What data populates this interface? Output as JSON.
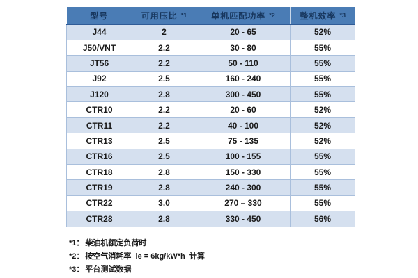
{
  "table": {
    "headers": [
      {
        "label": "型号",
        "note": ""
      },
      {
        "label": "可用压比",
        "note": "*1"
      },
      {
        "label": "单机匹配功率",
        "note": "*2"
      },
      {
        "label": "整机效率",
        "note": "*3"
      }
    ],
    "rows": [
      {
        "model": "J44",
        "pressure_ratio": "2",
        "power_range": "20 - 65",
        "efficiency": "52%"
      },
      {
        "model": "J50/VNT",
        "pressure_ratio": "2.2",
        "power_range": "30 - 80",
        "efficiency": "55%"
      },
      {
        "model": "JT56",
        "pressure_ratio": "2.2",
        "power_range": "50 - 110",
        "efficiency": "55%"
      },
      {
        "model": "J92",
        "pressure_ratio": "2.5",
        "power_range": "160 - 240",
        "efficiency": "55%"
      },
      {
        "model": "J120",
        "pressure_ratio": "2.8",
        "power_range": "300 - 450",
        "efficiency": "55%"
      },
      {
        "model": "CTR10",
        "pressure_ratio": "2.2",
        "power_range": "20 - 60",
        "efficiency": "52%"
      },
      {
        "model": "CTR11",
        "pressure_ratio": "2.2",
        "power_range": "40 - 100",
        "efficiency": "52%"
      },
      {
        "model": "CTR13",
        "pressure_ratio": "2.5",
        "power_range": "75 - 135",
        "efficiency": "52%"
      },
      {
        "model": "CTR16",
        "pressure_ratio": "2.5",
        "power_range": "100 - 155",
        "efficiency": "55%"
      },
      {
        "model": "CTR18",
        "pressure_ratio": "2.8",
        "power_range": "150 - 330",
        "efficiency": "55%"
      },
      {
        "model": "CTR19",
        "pressure_ratio": "2.8",
        "power_range": "240 - 300",
        "efficiency": "55%"
      },
      {
        "model": "CTR22",
        "pressure_ratio": "3.0",
        "power_range": "270 – 330",
        "efficiency": "55%"
      },
      {
        "model": "CTR28",
        "pressure_ratio": "2.8",
        "power_range": "330 - 450",
        "efficiency": "56%"
      }
    ]
  },
  "footnotes": [
    {
      "marker": "*1：",
      "text": "柴油机额定负荷时"
    },
    {
      "marker": "*2：",
      "text": "按空气消耗率  le = 6kg/kW*h  计算"
    },
    {
      "marker": "*3：",
      "text": "平台测试数据"
    }
  ],
  "colors": {
    "header_bg": "#4A7CB5",
    "header_border": "#2F5B96",
    "header_text": "#17365D",
    "row_alt_bg": "#D5E0EF",
    "row_bg": "#FFFFFF",
    "border": "#A9BFDC",
    "text": "#1A1A1A"
  }
}
